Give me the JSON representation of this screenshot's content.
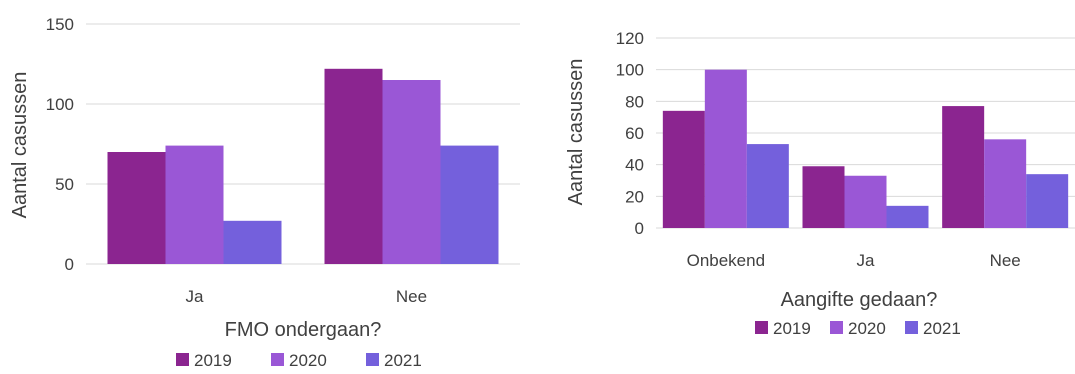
{
  "colors": {
    "2019": "#8b2590",
    "2020": "#9a57d6",
    "2021": "#7460dc"
  },
  "chart_data": [
    {
      "type": "bar",
      "categories": [
        "Ja",
        "Nee"
      ],
      "series": [
        {
          "name": "2019",
          "values": [
            70,
            122
          ]
        },
        {
          "name": "2020",
          "values": [
            74,
            115
          ]
        },
        {
          "name": "2021",
          "values": [
            27,
            74
          ]
        }
      ],
      "xlabel": "FMO ondergaan?",
      "ylabel": "Aantal casussen",
      "ylim": [
        0,
        150
      ],
      "yticks": [
        "0",
        "50",
        "100",
        "150"
      ],
      "grid": true,
      "legend": "bottom"
    },
    {
      "type": "bar",
      "categories": [
        "Onbekend",
        "Ja",
        "Nee"
      ],
      "series": [
        {
          "name": "2019",
          "values": [
            74,
            39,
            77
          ]
        },
        {
          "name": "2020",
          "values": [
            100,
            33,
            56
          ]
        },
        {
          "name": "2021",
          "values": [
            53,
            14,
            34
          ]
        }
      ],
      "xlabel": "Aangifte gedaan?",
      "ylabel": "Aantal casussen",
      "ylim": [
        0,
        120
      ],
      "yticks": [
        "0",
        "20",
        "40",
        "60",
        "80",
        "100",
        "120"
      ],
      "grid": true,
      "legend": "bottom"
    }
  ]
}
